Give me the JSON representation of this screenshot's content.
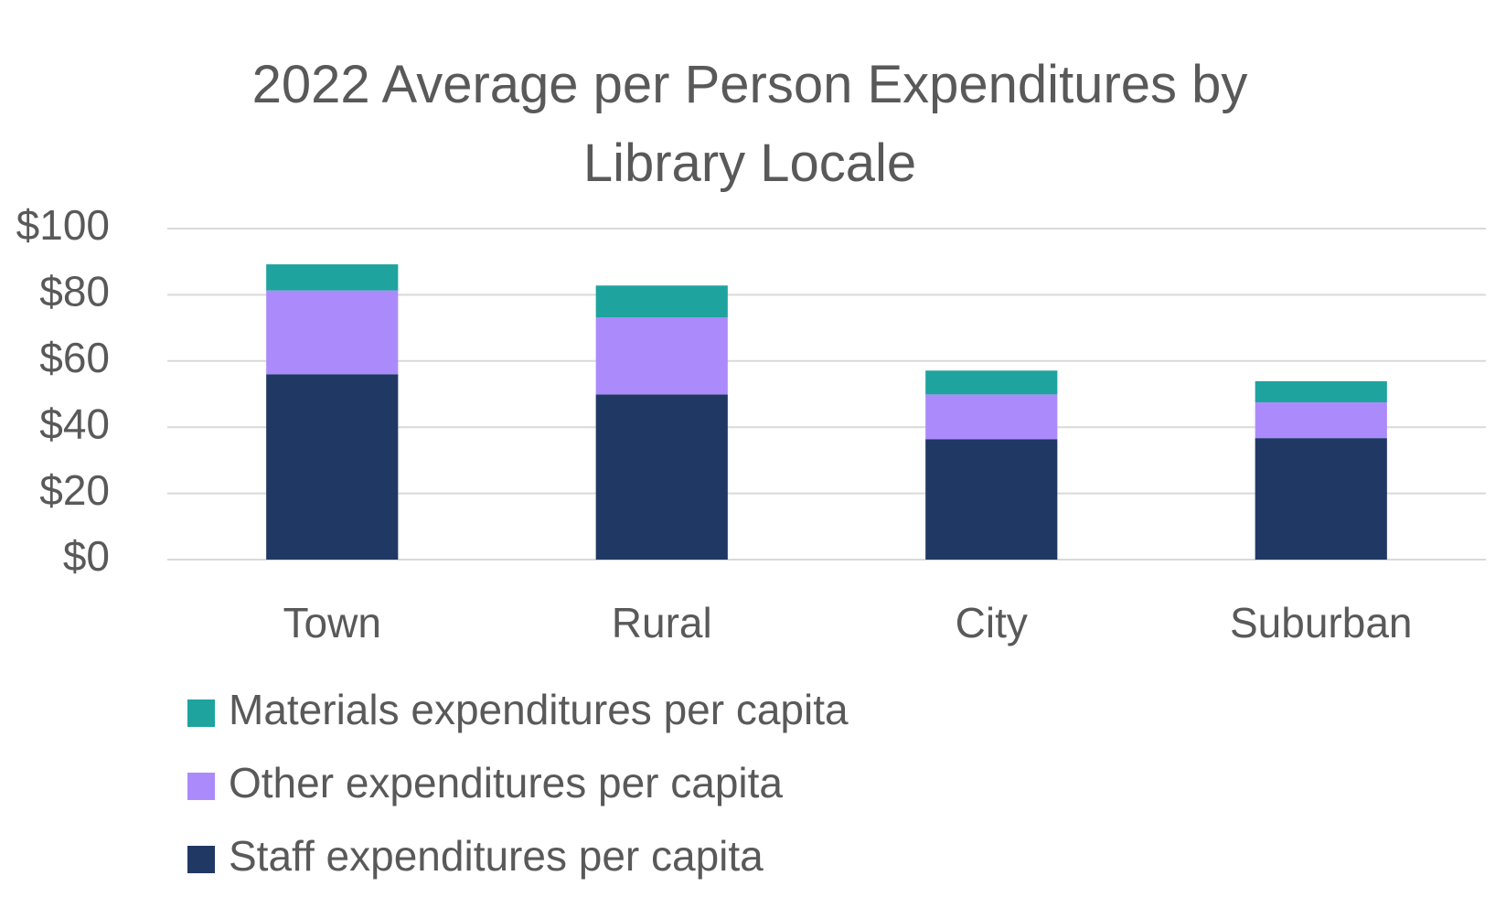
{
  "chart_data": {
    "type": "stacked_bar",
    "title": "2022 Average per Person Expenditures by Library Locale",
    "categories": [
      "Town",
      "Rural",
      "City",
      "Suburban"
    ],
    "series": [
      {
        "name": "Staff expenditures per capita",
        "color": "#203864",
        "values": [
          56.0,
          49.9,
          36.4,
          36.7
        ]
      },
      {
        "name": "Other expenditures per capita",
        "color": "#ab8bfb",
        "values": [
          25.3,
          23.3,
          13.5,
          10.8
        ]
      },
      {
        "name": "Materials expenditures per capita",
        "color": "#1fa39f",
        "values": [
          7.9,
          9.6,
          7.2,
          6.4
        ]
      }
    ],
    "ylim": [
      0,
      100
    ],
    "yticks": [
      {
        "value": 0,
        "label": "$0"
      },
      {
        "value": 20,
        "label": "$20"
      },
      {
        "value": 40,
        "label": "$40"
      },
      {
        "value": 60,
        "label": "$60"
      },
      {
        "value": 80,
        "label": "$80"
      },
      {
        "value": 100,
        "label": "$100"
      }
    ],
    "grid": true
  }
}
